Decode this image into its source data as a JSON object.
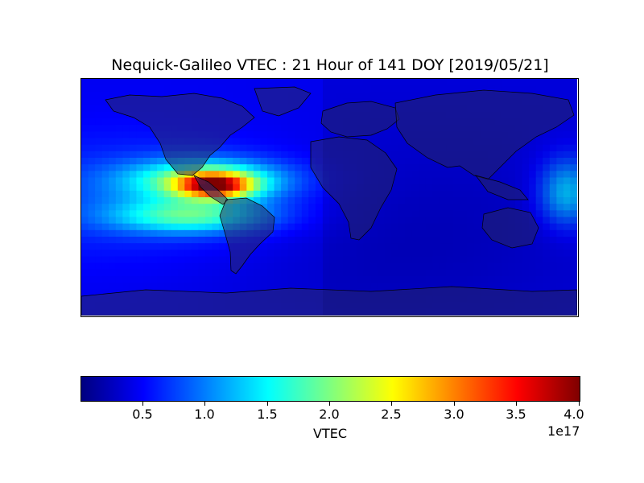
{
  "title": "Nequick-Galileo VTEC : 21 Hour of 141 DOY [2019/05/21]",
  "colorbar": {
    "label": "VTEC",
    "exponent": "1e17",
    "ticks": [
      "0.5",
      "1.0",
      "1.5",
      "2.0",
      "2.5",
      "3.0",
      "3.5",
      "4.0"
    ],
    "range": [
      0.0,
      4.0
    ],
    "colormap": "jet",
    "colors": [
      "#00007f",
      "#0000ff",
      "#007fff",
      "#00ffff",
      "#7fff7f",
      "#ffff00",
      "#ff7f00",
      "#ff0000",
      "#7f0000"
    ]
  },
  "chart_data": {
    "type": "heatmap",
    "title": "Nequick-Galileo VTEC : 21 Hour of 141 DOY [2019/05/21]",
    "projection": "equirectangular world map with coastlines and country borders, night-side shading",
    "value_label": "VTEC",
    "scale": "1e17",
    "vmin": 0.0,
    "vmax": 4.0,
    "features": [
      {
        "region": "Caribbean / northern South America",
        "peak_value": 4.0
      },
      {
        "region": "Eastern Pacific north of equator",
        "value": 2.5
      },
      {
        "region": "Eastern Pacific south of equator",
        "value": 2.2
      },
      {
        "region": "Western Pacific equatorial edge",
        "value": 1.5
      },
      {
        "region": "Rest of globe",
        "value": 0.5
      }
    ]
  }
}
